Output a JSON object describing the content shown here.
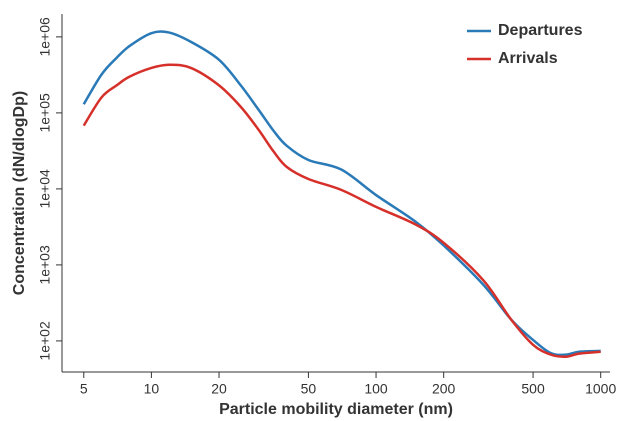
{
  "chart_data": {
    "type": "line",
    "x_label": "Particle mobility diameter (nm)",
    "y_label": "Concentration (dN/dlogDp)",
    "x_log": true,
    "y_log": true,
    "legend_position": "upper right",
    "xlim": [
      4,
      1100
    ],
    "ylim": [
      39,
      2000000
    ],
    "xticks": [
      5,
      10,
      20,
      50,
      100,
      200,
      500,
      1000
    ],
    "yticks": [
      {
        "value": 100,
        "label": "1e+02"
      },
      {
        "value": 1000,
        "label": "1e+03"
      },
      {
        "value": 10000,
        "label": "1e+04"
      },
      {
        "value": 100000,
        "label": "1e+05"
      },
      {
        "value": 1000000,
        "label": "1e+06"
      }
    ],
    "x": [
      5,
      6,
      7,
      8,
      10,
      12,
      15,
      20,
      25,
      30,
      35,
      40,
      50,
      70,
      100,
      150,
      200,
      300,
      400,
      500,
      600,
      700,
      800,
      1000
    ],
    "series": [
      {
        "name": "Departures",
        "color": "#2a7ab8",
        "values": [
          130000,
          320000,
          530000,
          760000,
          1120000,
          1140000,
          860000,
          500000,
          230000,
          110000,
          58000,
          37000,
          24000,
          18000,
          8300,
          3700,
          1800,
          550,
          190,
          103,
          69,
          66,
          72,
          74
        ]
      },
      {
        "name": "Arrivals",
        "color": "#d6302a",
        "values": [
          68000,
          160000,
          230000,
          300000,
          390000,
          430000,
          390000,
          230000,
          120000,
          60000,
          31000,
          19500,
          13500,
          9700,
          5800,
          3400,
          1950,
          630,
          190,
          89,
          66,
          62,
          68,
          72
        ]
      }
    ]
  }
}
